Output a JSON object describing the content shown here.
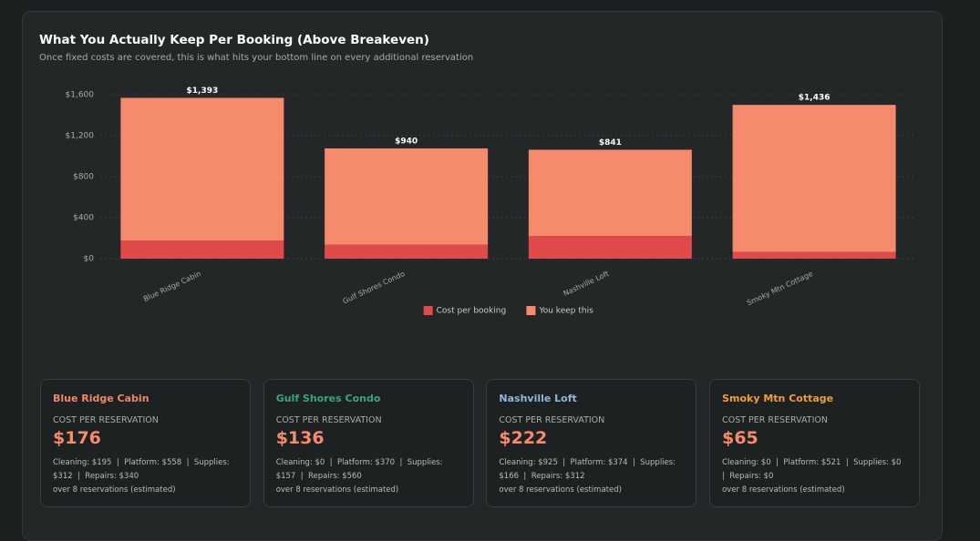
{
  "chart_data": {
    "type": "stacked-bar",
    "title": "What You Actually Keep Per Booking (Above Breakeven)",
    "subtitle": "Once fixed costs are covered, this is what hits your bottom line on every additional reservation",
    "categories": [
      "Blue Ridge Cabin",
      "Gulf Shores Condo",
      "Nashville Loft",
      "Smoky Mtn Cottage"
    ],
    "series": [
      {
        "name": "Cost per booking",
        "color": "#e04a4a",
        "values": [
          176,
          136,
          222,
          65
        ]
      },
      {
        "name": "You keep this",
        "color": "#f58a6c",
        "values": [
          1393,
          940,
          841,
          1436
        ],
        "value_labels": [
          "$1,393",
          "$940",
          "$841",
          "$1,436"
        ]
      }
    ],
    "ylim": [
      0,
      1600
    ],
    "yticks": [
      {
        "value": 0,
        "label": "$0"
      },
      {
        "value": 400,
        "label": "$400"
      },
      {
        "value": 800,
        "label": "$800"
      },
      {
        "value": 1200,
        "label": "$1,200"
      },
      {
        "value": 1600,
        "label": "$1,600"
      }
    ],
    "grid": true,
    "legend": "bottom"
  },
  "cards": [
    {
      "name": "Blue Ridge Cabin",
      "color": "#f0866a",
      "label": "COST PER RESERVATION",
      "amount": "$176",
      "details": "Cleaning: $195  |  Platform: $558  |  Supplies: $312  |  Repairs: $340",
      "note": "over 8 reservations (estimated)"
    },
    {
      "name": "Gulf Shores Condo",
      "color": "#3aa57a",
      "label": "COST PER RESERVATION",
      "amount": "$136",
      "details": "Cleaning: $0  |  Platform: $370  |  Supplies: $157  |  Repairs: $560",
      "note": "over 8 reservations (estimated)"
    },
    {
      "name": "Nashville Loft",
      "color": "#8fb8dc",
      "label": "COST PER RESERVATION",
      "amount": "$222",
      "details": "Cleaning: $925  |  Platform: $374  |  Supplies: $166  |  Repairs: $312",
      "note": "over 8 reservations (estimated)"
    },
    {
      "name": "Smoky Mtn Cottage",
      "color": "#f0a030",
      "label": "COST PER RESERVATION",
      "amount": "$65",
      "details": "Cleaning: $0  |  Platform: $521  |  Supplies: $0  |  Repairs: $0",
      "note": "over 8 reservations (estimated)"
    }
  ]
}
